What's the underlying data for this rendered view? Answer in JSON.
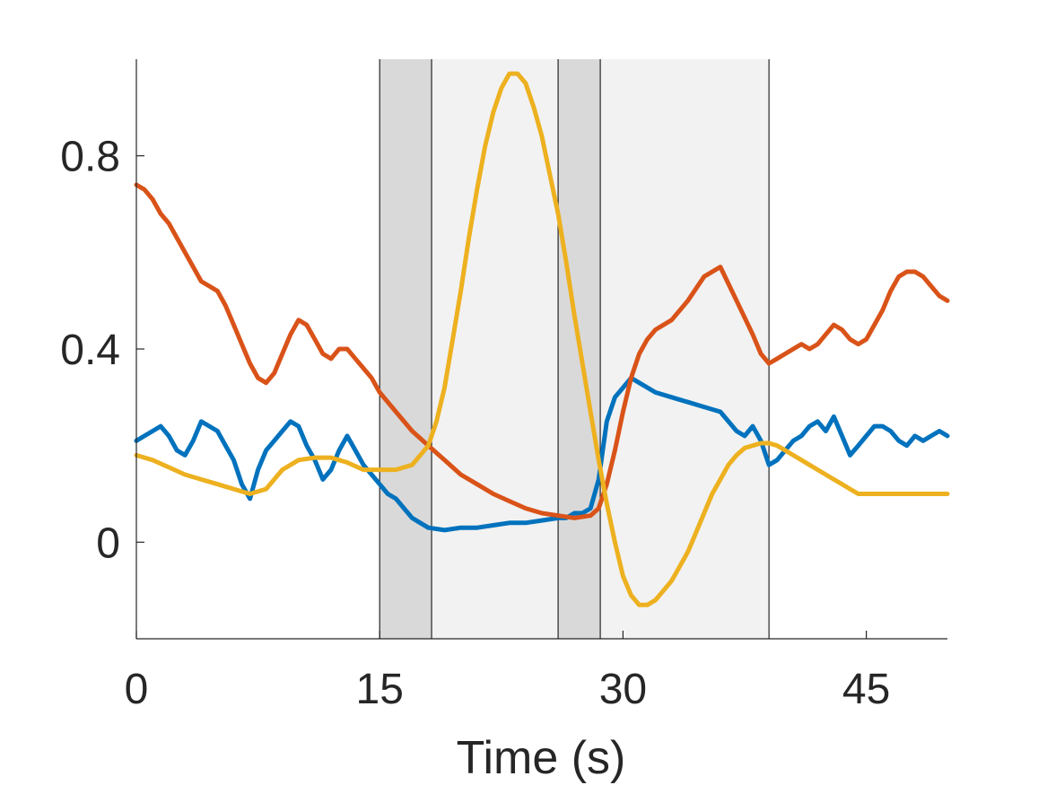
{
  "chart_data": {
    "type": "line",
    "title": "",
    "xlabel": "Time (s)",
    "ylabel": "",
    "xlim": [
      0,
      50
    ],
    "ylim": [
      -0.2,
      1.0
    ],
    "xticks": [
      0,
      15,
      30,
      45
    ],
    "xtick_labels": [
      "0",
      "15",
      "30",
      "45"
    ],
    "yticks": [
      0,
      0.4,
      0.8
    ],
    "ytick_labels": [
      "0",
      "0.4",
      "0.8"
    ],
    "grid": false,
    "bands": [
      {
        "x0": 15.0,
        "x1": 18.2,
        "color": "#d9d9d9"
      },
      {
        "x0": 18.2,
        "x1": 26.0,
        "color": "#f2f2f2"
      },
      {
        "x0": 26.0,
        "x1": 28.6,
        "color": "#d9d9d9"
      },
      {
        "x0": 28.6,
        "x1": 39.0,
        "color": "#f2f2f2"
      }
    ],
    "series": [
      {
        "color": "#0072bd",
        "x": [
          0,
          0.5,
          1,
          1.5,
          2,
          2.5,
          3,
          3.5,
          4,
          4.5,
          5,
          5.5,
          6,
          6.5,
          7,
          7.5,
          8,
          8.5,
          9,
          9.5,
          10,
          10.5,
          11,
          11.5,
          12,
          12.5,
          13,
          13.5,
          14,
          14.5,
          15,
          15.5,
          16,
          16.5,
          17,
          17.5,
          18,
          19,
          20,
          21,
          22,
          23,
          24,
          25,
          26,
          26.5,
          27,
          27.5,
          28,
          28.5,
          29,
          29.5,
          30,
          30.5,
          31,
          32,
          33,
          34,
          35,
          36,
          37,
          37.5,
          38,
          38.5,
          39,
          39.5,
          40,
          40.5,
          41,
          41.5,
          42,
          42.5,
          43,
          43.5,
          44,
          44.5,
          45,
          45.5,
          46,
          46.5,
          47,
          47.5,
          48,
          48.5,
          49,
          49.5,
          50
        ],
        "values": [
          0.21,
          0.22,
          0.23,
          0.24,
          0.22,
          0.19,
          0.18,
          0.21,
          0.25,
          0.24,
          0.23,
          0.2,
          0.17,
          0.12,
          0.09,
          0.15,
          0.19,
          0.21,
          0.23,
          0.25,
          0.24,
          0.2,
          0.17,
          0.13,
          0.15,
          0.19,
          0.22,
          0.19,
          0.16,
          0.14,
          0.12,
          0.1,
          0.09,
          0.07,
          0.05,
          0.04,
          0.03,
          0.025,
          0.03,
          0.03,
          0.035,
          0.04,
          0.04,
          0.045,
          0.05,
          0.05,
          0.06,
          0.06,
          0.07,
          0.13,
          0.25,
          0.3,
          0.32,
          0.34,
          0.33,
          0.31,
          0.3,
          0.29,
          0.28,
          0.27,
          0.23,
          0.22,
          0.24,
          0.21,
          0.16,
          0.17,
          0.19,
          0.21,
          0.22,
          0.24,
          0.25,
          0.23,
          0.26,
          0.22,
          0.18,
          0.2,
          0.22,
          0.24,
          0.24,
          0.23,
          0.21,
          0.2,
          0.22,
          0.21,
          0.22,
          0.23,
          0.22
        ]
      },
      {
        "color": "#d95319",
        "x": [
          0,
          0.5,
          1,
          1.5,
          2,
          2.5,
          3,
          3.5,
          4,
          4.5,
          5,
          5.5,
          6,
          6.5,
          7,
          7.5,
          8,
          8.5,
          9,
          9.5,
          10,
          10.5,
          11,
          11.5,
          12,
          12.5,
          13,
          13.5,
          14,
          14.5,
          15,
          16,
          17,
          18,
          19,
          20,
          21,
          22,
          23,
          24,
          25,
          26,
          27,
          28,
          28.5,
          29,
          29.5,
          30,
          30.5,
          31,
          31.5,
          32,
          33,
          34,
          35,
          36,
          37,
          38,
          38.5,
          39,
          39.5,
          40,
          40.5,
          41,
          41.5,
          42,
          42.5,
          43,
          43.5,
          44,
          44.5,
          45,
          45.5,
          46,
          46.5,
          47,
          47.5,
          48,
          48.5,
          49,
          49.5,
          50
        ],
        "values": [
          0.74,
          0.73,
          0.71,
          0.68,
          0.66,
          0.63,
          0.6,
          0.57,
          0.54,
          0.53,
          0.52,
          0.49,
          0.45,
          0.41,
          0.37,
          0.34,
          0.33,
          0.35,
          0.39,
          0.43,
          0.46,
          0.45,
          0.42,
          0.39,
          0.38,
          0.4,
          0.4,
          0.38,
          0.36,
          0.34,
          0.31,
          0.27,
          0.23,
          0.2,
          0.17,
          0.14,
          0.12,
          0.1,
          0.085,
          0.07,
          0.06,
          0.055,
          0.05,
          0.055,
          0.07,
          0.12,
          0.19,
          0.27,
          0.34,
          0.39,
          0.42,
          0.44,
          0.46,
          0.5,
          0.55,
          0.57,
          0.5,
          0.43,
          0.39,
          0.37,
          0.38,
          0.39,
          0.4,
          0.41,
          0.4,
          0.41,
          0.43,
          0.45,
          0.44,
          0.42,
          0.41,
          0.42,
          0.45,
          0.48,
          0.52,
          0.55,
          0.56,
          0.56,
          0.55,
          0.53,
          0.51,
          0.5
        ]
      },
      {
        "color": "#edb120",
        "x": [
          0,
          1,
          2,
          3,
          4,
          5,
          6,
          7,
          8,
          9,
          10,
          11,
          12,
          13,
          14,
          15,
          16,
          17,
          18,
          18.5,
          19,
          19.5,
          20,
          20.5,
          21,
          21.5,
          22,
          22.5,
          23,
          23.5,
          24,
          24.5,
          25,
          25.5,
          26,
          26.5,
          27,
          27.5,
          28,
          28.5,
          29,
          29.5,
          30,
          30.5,
          31,
          31.5,
          32,
          32.5,
          33,
          33.5,
          34,
          34.5,
          35,
          35.5,
          36,
          36.5,
          37,
          37.5,
          38,
          38.5,
          39,
          39.5,
          40,
          40.5,
          41,
          41.5,
          42,
          42.5,
          43,
          43.5,
          44,
          44.5,
          45,
          46,
          47,
          48,
          49,
          50
        ],
        "values": [
          0.18,
          0.17,
          0.155,
          0.14,
          0.13,
          0.12,
          0.11,
          0.1,
          0.11,
          0.15,
          0.17,
          0.175,
          0.175,
          0.165,
          0.15,
          0.15,
          0.15,
          0.16,
          0.2,
          0.25,
          0.32,
          0.42,
          0.52,
          0.63,
          0.73,
          0.82,
          0.89,
          0.94,
          0.97,
          0.97,
          0.95,
          0.9,
          0.84,
          0.76,
          0.68,
          0.58,
          0.47,
          0.37,
          0.27,
          0.17,
          0.08,
          0.0,
          -0.07,
          -0.11,
          -0.13,
          -0.13,
          -0.12,
          -0.1,
          -0.08,
          -0.05,
          -0.02,
          0.02,
          0.06,
          0.1,
          0.13,
          0.16,
          0.18,
          0.195,
          0.2,
          0.205,
          0.205,
          0.2,
          0.19,
          0.18,
          0.17,
          0.16,
          0.15,
          0.14,
          0.13,
          0.12,
          0.11,
          0.1,
          0.1,
          0.1,
          0.1,
          0.1,
          0.1,
          0.1
        ]
      }
    ]
  }
}
